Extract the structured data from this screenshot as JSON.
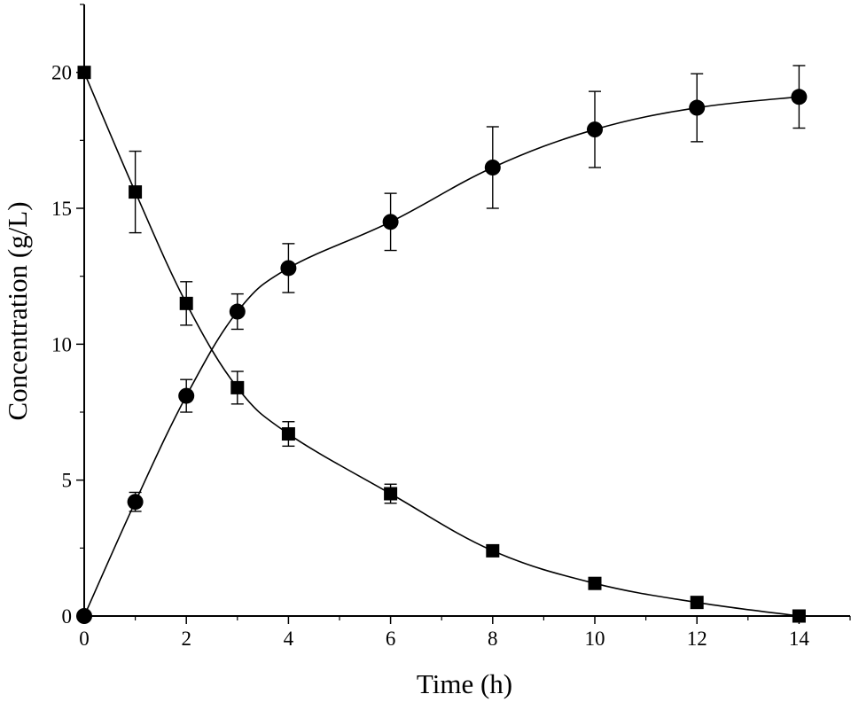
{
  "chart_data": {
    "type": "line",
    "xlabel": "Time (h)",
    "ylabel": "Concentration (g/L)",
    "xlim": [
      0,
      15
    ],
    "ylim": [
      0,
      22.5
    ],
    "x_ticks": [
      0,
      2,
      4,
      6,
      8,
      10,
      12,
      14
    ],
    "y_ticks": [
      0,
      5,
      10,
      15,
      20
    ],
    "grid": false,
    "legend": "none",
    "x": [
      0,
      1,
      2,
      3,
      4,
      6,
      8,
      10,
      12,
      14
    ],
    "series": [
      {
        "marker": "square",
        "values": [
          20.0,
          15.6,
          11.5,
          8.4,
          6.7,
          4.5,
          2.4,
          1.2,
          0.5,
          0.0
        ],
        "errors": [
          0,
          1.5,
          0.8,
          0.6,
          0.45,
          0.35,
          0.2,
          0.15,
          0.1,
          0.05
        ]
      },
      {
        "marker": "circle",
        "values": [
          0.0,
          4.2,
          8.1,
          11.2,
          12.8,
          14.5,
          16.5,
          17.9,
          18.7,
          19.1
        ],
        "errors": [
          0,
          0.35,
          0.6,
          0.65,
          0.9,
          1.05,
          1.5,
          1.4,
          1.25,
          1.15
        ]
      }
    ]
  }
}
